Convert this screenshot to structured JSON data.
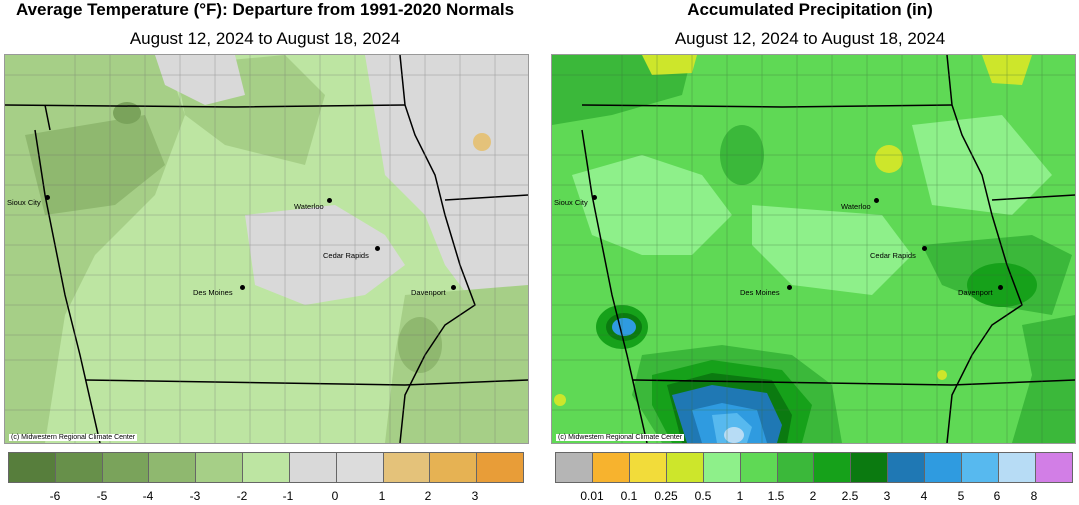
{
  "temperature_map": {
    "title": "Average Temperature (°F): Departure from 1991-2020 Normals",
    "subtitle": "August 12, 2024 to August 18, 2024",
    "credit": "(c) Midwestern Regional Climate Center",
    "cities": [
      "Sioux City",
      "Waterloo",
      "Cedar Rapids",
      "Des Moines",
      "Davenport"
    ],
    "legend": {
      "colors": [
        "#577e3c",
        "#67904a",
        "#7aa35b",
        "#8fb86f",
        "#a6cf87",
        "#bde5a2",
        "#d9d9d9",
        "#dcdcdc",
        "#e4c27a",
        "#e6b253",
        "#e89d38"
      ],
      "ticks": [
        "-6",
        "-5",
        "-4",
        "-3",
        "-2",
        "-1",
        "0",
        "1",
        "2",
        "3"
      ]
    }
  },
  "precipitation_map": {
    "title": "Accumulated Precipitation (in)",
    "subtitle": "August 12, 2024 to August 18, 2024",
    "credit": "(c) Midwestern Regional Climate Center",
    "cities": [
      "Sioux City",
      "Waterloo",
      "Cedar Rapids",
      "Des Moines",
      "Davenport"
    ],
    "legend": {
      "colors": [
        "#b5b5b5",
        "#f7b32e",
        "#f2dc3a",
        "#cde62b",
        "#8ef08a",
        "#5fd955",
        "#3bb83a",
        "#16a11a",
        "#0b7a10",
        "#1f78b4",
        "#2f9be0",
        "#57b9ef",
        "#b7dcf5",
        "#d27ee6"
      ],
      "ticks": [
        "0.01",
        "0.1",
        "0.25",
        "0.5",
        "1",
        "1.5",
        "2",
        "2.5",
        "3",
        "4",
        "5",
        "6",
        "8"
      ]
    }
  }
}
